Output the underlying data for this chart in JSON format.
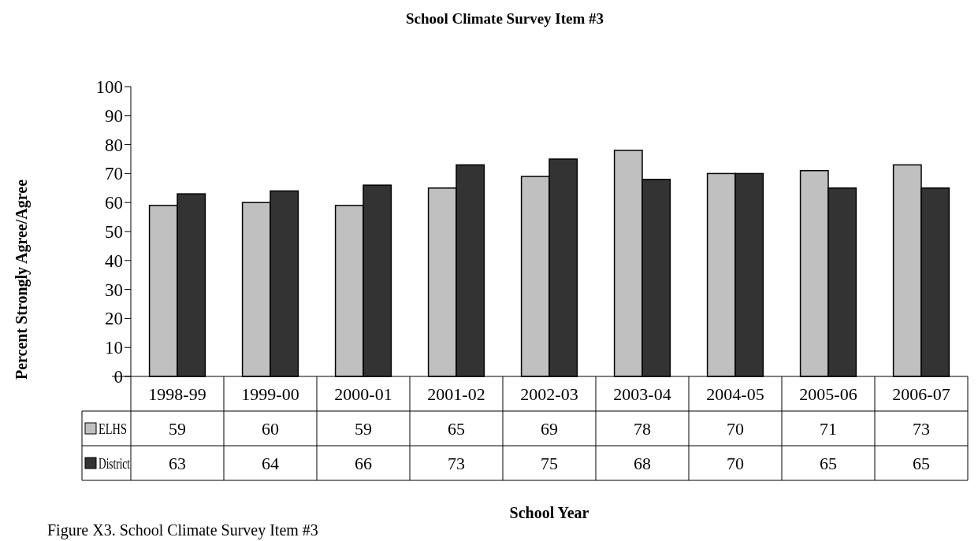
{
  "chart_data": {
    "type": "bar",
    "title": "School Climate Survey Item #3",
    "ylabel": "Percent Strongly Agree/Agree",
    "categories": [
      "1998-99",
      "1999-00",
      "2000-01",
      "2001-02",
      "2002-03",
      "2003-04",
      "2004-05",
      "2005-06",
      "2006-07"
    ],
    "series": [
      {
        "name": "ELHS",
        "color": "#c0c0c0",
        "values": [
          59,
          60,
          59,
          65,
          69,
          78,
          70,
          71,
          73
        ]
      },
      {
        "name": "District",
        "color": "#333333",
        "values": [
          63,
          64,
          66,
          73,
          75,
          68,
          70,
          65,
          65
        ]
      }
    ],
    "ylim": [
      0,
      100
    ],
    "yticks": [
      0,
      10,
      20,
      30,
      40,
      50,
      60,
      70,
      80,
      90,
      100
    ],
    "grid": false,
    "legend": "left",
    "data_labels": true,
    "annotations": [
      "School Year",
      "Figure X3. School Climate Survey Item #3"
    ]
  }
}
